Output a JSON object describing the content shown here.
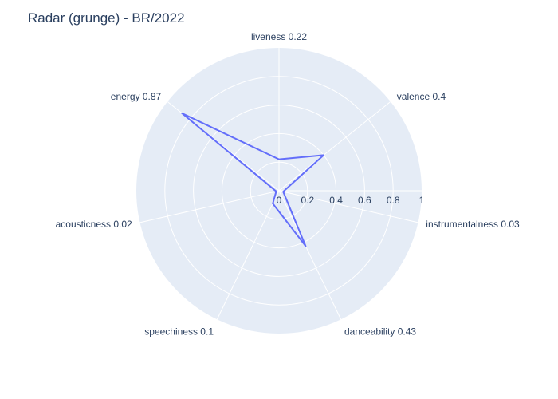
{
  "chart_data": {
    "type": "radar",
    "title": "Radar (grunge) - BR/2022",
    "categories": [
      "liveness",
      "valence",
      "instrumentalness",
      "danceability",
      "speechiness",
      "acousticness",
      "energy"
    ],
    "series": [
      {
        "values": [
          0.22,
          0.4,
          0.03,
          0.43,
          0.1,
          0.02,
          0.87
        ]
      }
    ],
    "radial_range": [
      0,
      1
    ],
    "radial_ticks": [
      "0",
      "0.2",
      "0.4",
      "0.6",
      "0.8",
      "1"
    ],
    "grid": true,
    "colors": {
      "line": "#636efa",
      "background": "#e5ecf6",
      "grid": "#ffffff",
      "text": "#2a3f5f"
    }
  }
}
